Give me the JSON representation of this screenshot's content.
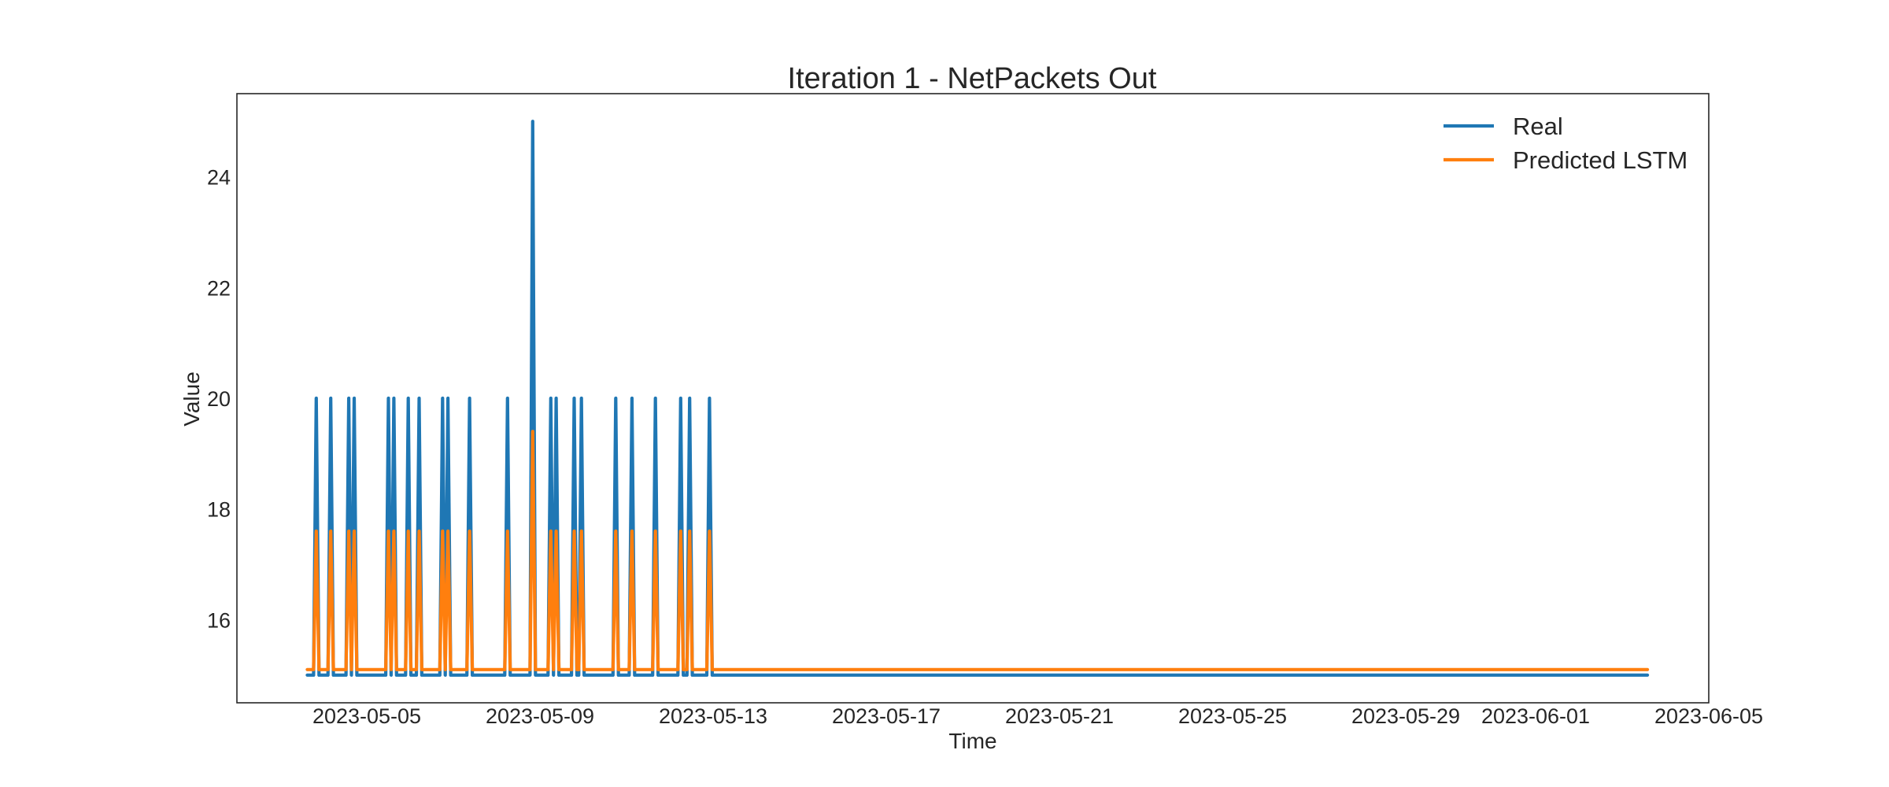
{
  "chart_data": {
    "type": "line",
    "title": "Iteration 1 - NetPackets Out",
    "xlabel": "Time",
    "ylabel": "Value",
    "x_type": "date",
    "xlim": [
      "2023-05-02T00:00",
      "2023-06-05T00:00"
    ],
    "ylim": [
      14.5,
      25.5
    ],
    "x_ticks": [
      {
        "value": "2023-05-05",
        "label": "2023-05-05"
      },
      {
        "value": "2023-05-09",
        "label": "2023-05-09"
      },
      {
        "value": "2023-05-13",
        "label": "2023-05-13"
      },
      {
        "value": "2023-05-17",
        "label": "2023-05-17"
      },
      {
        "value": "2023-05-21",
        "label": "2023-05-21"
      },
      {
        "value": "2023-05-25",
        "label": "2023-05-25"
      },
      {
        "value": "2023-05-29",
        "label": "2023-05-29"
      },
      {
        "value": "2023-06-01",
        "label": "2023-06-01"
      },
      {
        "value": "2023-06-05",
        "label": "2023-06-05"
      }
    ],
    "y_ticks": [
      16,
      18,
      20,
      22,
      24
    ],
    "grid": false,
    "legend_position": "top-right",
    "series": [
      {
        "name": "Real",
        "color": "#1f77b4",
        "baseline": 15,
        "start": "2023-05-03T15:00",
        "end": "2023-06-03T14:00",
        "spikes": [
          {
            "t": "2023-05-03T20:00",
            "v": 20
          },
          {
            "t": "2023-05-04T04:00",
            "v": 20
          },
          {
            "t": "2023-05-04T14:00",
            "v": 20
          },
          {
            "t": "2023-05-04T17:00",
            "v": 20
          },
          {
            "t": "2023-05-05T12:00",
            "v": 20
          },
          {
            "t": "2023-05-05T15:00",
            "v": 20
          },
          {
            "t": "2023-05-05T23:00",
            "v": 20
          },
          {
            "t": "2023-05-06T05:00",
            "v": 20
          },
          {
            "t": "2023-05-06T18:00",
            "v": 20
          },
          {
            "t": "2023-05-06T21:00",
            "v": 20
          },
          {
            "t": "2023-05-07T09:00",
            "v": 20
          },
          {
            "t": "2023-05-08T06:00",
            "v": 20
          },
          {
            "t": "2023-05-08T20:00",
            "v": 25
          },
          {
            "t": "2023-05-09T06:00",
            "v": 20
          },
          {
            "t": "2023-05-09T09:00",
            "v": 20
          },
          {
            "t": "2023-05-09T19:00",
            "v": 20
          },
          {
            "t": "2023-05-09T23:00",
            "v": 20
          },
          {
            "t": "2023-05-10T18:00",
            "v": 20
          },
          {
            "t": "2023-05-11T03:00",
            "v": 20
          },
          {
            "t": "2023-05-11T16:00",
            "v": 20
          },
          {
            "t": "2023-05-12T06:00",
            "v": 20
          },
          {
            "t": "2023-05-12T11:00",
            "v": 20
          },
          {
            "t": "2023-05-12T22:00",
            "v": 20
          }
        ]
      },
      {
        "name": "Predicted LSTM",
        "color": "#ff7f0e",
        "baseline": 15.1,
        "start": "2023-05-03T15:00",
        "end": "2023-06-03T14:00",
        "spikes": [
          {
            "t": "2023-05-03T20:00",
            "v": 17.6
          },
          {
            "t": "2023-05-04T04:00",
            "v": 17.6
          },
          {
            "t": "2023-05-04T14:00",
            "v": 17.6
          },
          {
            "t": "2023-05-04T17:00",
            "v": 17.6
          },
          {
            "t": "2023-05-05T12:00",
            "v": 17.6
          },
          {
            "t": "2023-05-05T15:00",
            "v": 17.6
          },
          {
            "t": "2023-05-05T23:00",
            "v": 17.6
          },
          {
            "t": "2023-05-06T05:00",
            "v": 17.6
          },
          {
            "t": "2023-05-06T18:00",
            "v": 17.6
          },
          {
            "t": "2023-05-06T21:00",
            "v": 17.6
          },
          {
            "t": "2023-05-07T09:00",
            "v": 17.6
          },
          {
            "t": "2023-05-08T06:00",
            "v": 17.6
          },
          {
            "t": "2023-05-08T20:00",
            "v": 19.4
          },
          {
            "t": "2023-05-09T06:00",
            "v": 17.6
          },
          {
            "t": "2023-05-09T09:00",
            "v": 17.6
          },
          {
            "t": "2023-05-09T19:00",
            "v": 17.6
          },
          {
            "t": "2023-05-09T23:00",
            "v": 17.6
          },
          {
            "t": "2023-05-10T18:00",
            "v": 17.6
          },
          {
            "t": "2023-05-11T03:00",
            "v": 17.6
          },
          {
            "t": "2023-05-11T16:00",
            "v": 17.6
          },
          {
            "t": "2023-05-12T06:00",
            "v": 17.6
          },
          {
            "t": "2023-05-12T11:00",
            "v": 17.6
          },
          {
            "t": "2023-05-12T22:00",
            "v": 17.6
          }
        ]
      }
    ]
  }
}
